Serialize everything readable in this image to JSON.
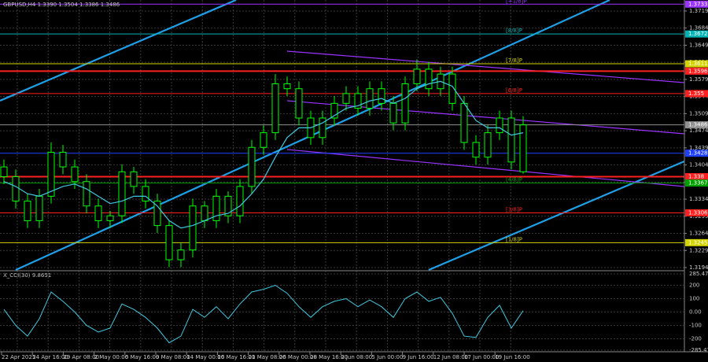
{
  "chart_data": {
    "type": "candlestick",
    "title": "GBPUSD,H4  1.3390 1.3504 1.3386 1.3486",
    "x_labels": [
      "22 Apr 2025",
      "24 Apr 16:00",
      "29 Apr 08:00",
      "2 May 00:00",
      "6 May 16:00",
      "9 May 08:00",
      "14 May 00:00",
      "16 May 16:00",
      "21 May 08:00",
      "26 May 00:00",
      "28 May 16:00",
      "2 Jun 08:00",
      "5 Jun 00:00",
      "9 Jun 16:00",
      "12 Jun 08:00",
      "17 Jun 00:00",
      "19 Jun 16:00"
    ],
    "open": [
      1.34,
      1.338,
      1.333,
      1.329,
      1.334,
      1.343,
      1.34,
      1.337,
      1.332,
      1.329,
      1.33,
      1.339,
      1.336,
      1.333,
      1.328,
      1.321,
      1.323,
      1.332,
      1.329,
      1.334,
      1.33,
      1.336,
      1.344,
      1.347,
      1.357,
      1.356,
      1.35,
      1.346,
      1.35,
      1.353,
      1.355,
      1.352,
      1.356,
      1.353,
      1.349,
      1.357,
      1.36,
      1.356,
      1.359,
      1.353,
      1.345,
      1.342,
      1.347,
      1.35,
      1.339
    ],
    "high": [
      1.3415,
      1.3395,
      1.3345,
      1.3355,
      1.345,
      1.3445,
      1.3415,
      1.3385,
      1.3335,
      1.331,
      1.3405,
      1.34,
      1.3375,
      1.3345,
      1.329,
      1.3245,
      1.3335,
      1.333,
      1.3355,
      1.335,
      1.3375,
      1.3455,
      1.3485,
      1.359,
      1.3585,
      1.3575,
      1.3515,
      1.3515,
      1.3545,
      1.3565,
      1.3565,
      1.3575,
      1.3575,
      1.3545,
      1.3585,
      1.362,
      1.3615,
      1.3605,
      1.3605,
      1.3545,
      1.3465,
      1.3485,
      1.3515,
      1.3515,
      1.3504
    ],
    "low": [
      1.3365,
      1.3315,
      1.3275,
      1.3275,
      1.3325,
      1.3385,
      1.3355,
      1.3305,
      1.3275,
      1.3275,
      1.3285,
      1.3345,
      1.3315,
      1.3265,
      1.3195,
      1.3195,
      1.3215,
      1.3275,
      1.3275,
      1.3285,
      1.3285,
      1.3345,
      1.3425,
      1.3455,
      1.3545,
      1.3485,
      1.3445,
      1.3445,
      1.3485,
      1.3515,
      1.3505,
      1.3505,
      1.3515,
      1.3475,
      1.3475,
      1.3555,
      1.3545,
      1.3545,
      1.3515,
      1.3435,
      1.3405,
      1.3405,
      1.3455,
      1.3395,
      1.3386
    ],
    "close": [
      1.338,
      1.333,
      1.329,
      1.334,
      1.343,
      1.34,
      1.337,
      1.332,
      1.329,
      1.33,
      1.339,
      1.336,
      1.333,
      1.328,
      1.321,
      1.323,
      1.332,
      1.329,
      1.334,
      1.33,
      1.336,
      1.344,
      1.347,
      1.357,
      1.356,
      1.35,
      1.346,
      1.35,
      1.353,
      1.355,
      1.352,
      1.356,
      1.353,
      1.349,
      1.357,
      1.36,
      1.356,
      1.359,
      1.353,
      1.345,
      1.342,
      1.347,
      1.35,
      1.341,
      1.3486
    ],
    "ma": [
      1.337,
      1.336,
      1.3345,
      1.334,
      1.335,
      1.336,
      1.3365,
      1.3355,
      1.334,
      1.3325,
      1.333,
      1.334,
      1.334,
      1.332,
      1.329,
      1.3275,
      1.328,
      1.329,
      1.33,
      1.3305,
      1.332,
      1.3345,
      1.3375,
      1.342,
      1.346,
      1.348,
      1.348,
      1.349,
      1.3505,
      1.352,
      1.3525,
      1.3535,
      1.354,
      1.353,
      1.354,
      1.356,
      1.357,
      1.3575,
      1.3565,
      1.353,
      1.3495,
      1.348,
      1.348,
      1.3465,
      1.347
    ],
    "candle_color": "#00ff00",
    "ma_color": "#40c8e0",
    "ylim": [
      1.31892,
      1.37415
    ],
    "yticks": [
      1.3194,
      1.3229,
      1.3264,
      1.3299,
      1.3334,
      1.3369,
      1.3404,
      1.3439,
      1.3474,
      1.3509,
      1.3544,
      1.3579,
      1.3614,
      1.3649,
      1.3684,
      1.3719
    ],
    "grid": true,
    "levels": [
      {
        "value": 1.3733,
        "label": "[+1/8]P",
        "color": "#9933ff"
      },
      {
        "value": 1.3672,
        "label": "[8/8]P",
        "color": "#00b4b4"
      },
      {
        "value": 1.3611,
        "label": "[7/8]P",
        "color": "#d4d400"
      },
      {
        "value": 1.3596,
        "color": "#ff2020",
        "bold": true
      },
      {
        "value": 1.355,
        "label": "[6/8]P",
        "color": "#ff2020"
      },
      {
        "value": 1.3486,
        "color": "#909090"
      },
      {
        "value": 1.3428,
        "color": "#2040ff"
      },
      {
        "value": 1.338,
        "color": "#ff2020",
        "bold": true
      },
      {
        "value": 1.3367,
        "label": "[4/8]P",
        "color": "#00a000"
      },
      {
        "value": 1.3306,
        "label": "[3/8]P",
        "color": "#ff2020"
      },
      {
        "value": 1.3245,
        "label": "[1/8]P",
        "color": "#d4d400"
      }
    ],
    "cci": {
      "title": "X_CCI(30) 9.8651",
      "color": "#40c8e0",
      "values": [
        20,
        -100,
        -180,
        -50,
        150,
        80,
        0,
        -100,
        -150,
        -120,
        60,
        20,
        -40,
        -120,
        -230,
        -180,
        20,
        -40,
        40,
        -50,
        60,
        150,
        170,
        200,
        140,
        40,
        -40,
        40,
        80,
        100,
        40,
        90,
        40,
        -40,
        100,
        150,
        80,
        110,
        -10,
        -180,
        -190,
        -40,
        50,
        -120,
        9.8651
      ],
      "ylim": [
        -285.4766,
        285.4768
      ],
      "yticks": [
        {
          "value": 285.4768,
          "label": "285.4768"
        },
        200,
        100,
        {
          "value": 0,
          "label": "0.00"
        },
        -100,
        -200,
        {
          "value": -285.4766,
          "label": "-285.4766"
        }
      ]
    }
  }
}
